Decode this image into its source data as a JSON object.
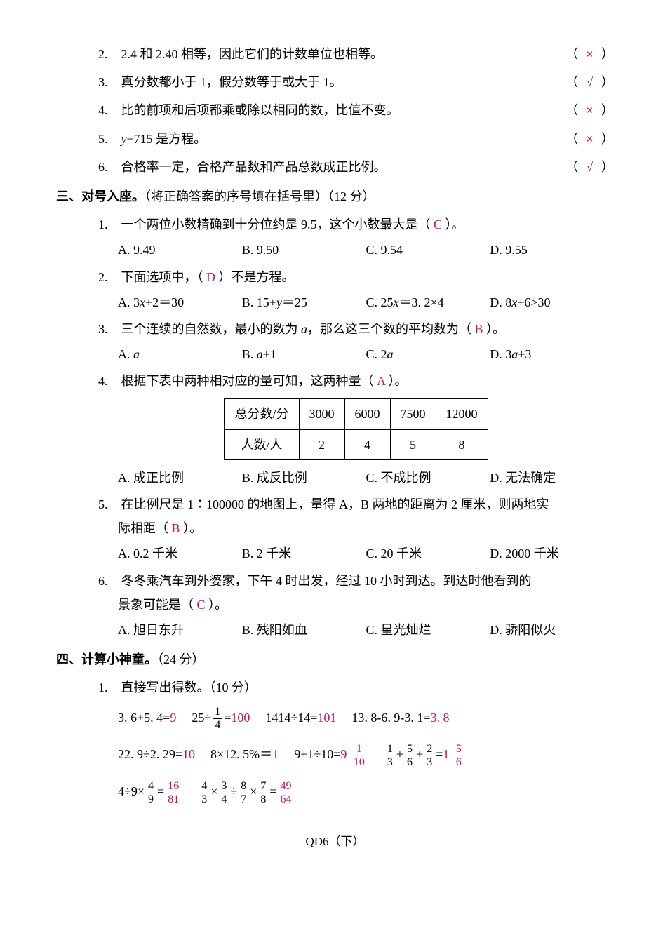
{
  "section2_items": [
    {
      "idx": "2.",
      "text": "2.4 和 2.40 相等，因此它们的计数单位也相等。",
      "mark": "×"
    },
    {
      "idx": "3.",
      "text": "真分数都小于 1，假分数等于或大于 1。",
      "mark": "√"
    },
    {
      "idx": "4.",
      "text": "比的前项和后项都乘或除以相同的数，比值不变。",
      "mark": "×"
    },
    {
      "idx": "5.",
      "text_html": "<span class=\"ital\">y</span>+715 是方程。",
      "mark": "×"
    },
    {
      "idx": "6.",
      "text": "合格率一定，合格产品数和产品总数成正比例。",
      "mark": "√"
    }
  ],
  "section3": {
    "title": "三、对号入座。",
    "note": "（将正确答案的序号填在括号里）（12 分）",
    "items": [
      {
        "idx": "1.",
        "stem_pre": "一个两位小数精确到十分位约是 9.5，这个小数最大是（",
        "ans": " C ",
        "stem_post": "）。",
        "opts": [
          "A. 9.49",
          "B. 9.50",
          "C. 9.54",
          "D. 9.55"
        ]
      },
      {
        "idx": "2.",
        "stem_pre": "下面选项中，（",
        "ans": " D ",
        "stem_post": "）不是方程。",
        "opts_html": [
          "A. 3<span class=\"ital\">x</span>+2＝30",
          "B. 15+<span class=\"ital\">y</span>＝25",
          "C. 25<span class=\"ital\">x</span>＝3. 2×4",
          "D. 8<span class=\"ital\">x</span>+6&gt;30"
        ]
      },
      {
        "idx": "3.",
        "stem_pre_html": "三个连续的自然数，最小的数为 <span class=\"ital\">a</span>，那么这三个数的平均数为（",
        "ans": " B ",
        "stem_post": "）。",
        "opts_html": [
          "A. <span class=\"ital\">a</span>",
          "B. <span class=\"ital\">a</span>+1",
          "C. 2<span class=\"ital\">a</span>",
          "D. 3<span class=\"ital\">a</span>+3"
        ]
      },
      {
        "idx": "4.",
        "stem_pre": "根据下表中两种相对应的量可知，这两种量（",
        "ans": " A ",
        "stem_post": "）。",
        "table": {
          "r1": [
            "总分数/分",
            "3000",
            "6000",
            "7500",
            "12000"
          ],
          "r2": [
            "人数/人",
            "2",
            "4",
            "5",
            "8"
          ]
        },
        "opts": [
          "A. 成正比例",
          "B. 成反比例",
          "C. 不成比例",
          "D. 无法确定"
        ]
      },
      {
        "idx": "5.",
        "stem_line1": "在比例尺是 1∶100000 的地图上，量得 A，B 两地的距离为 2 厘米，则两地实",
        "stem_line2_pre": "际相距（",
        "ans": " B ",
        "stem_line2_post": "）。",
        "opts": [
          "A. 0.2 千米",
          "B. 2 千米",
          "C. 20 千米",
          "D. 2000 千米"
        ]
      },
      {
        "idx": "6.",
        "stem_line1": "冬冬乘汽车到外婆家，下午 4 时出发，经过 10 小时到达。到达时他看到的",
        "stem_line2_pre": "景象可能是（",
        "ans": " C ",
        "stem_line2_post": "）。",
        "opts": [
          "A. 旭日东升",
          "B. 残阳如血",
          "C. 星光灿烂",
          "D. 骄阳似火"
        ]
      }
    ]
  },
  "section4": {
    "title": "四、计算小神童。",
    "points": "（24 分）",
    "sub1": {
      "idx": "1.",
      "label": "直接写出得数。（10 分）"
    },
    "row1": [
      {
        "expr": "3. 6+5. 4=",
        "ans": "9"
      },
      {
        "expr_html": "25÷<span class=\"frac\"><span class=\"num\">1</span><span class=\"den\">4</span></span>=",
        "ans": "100"
      },
      {
        "expr": "1414÷14=",
        "ans": "101"
      },
      {
        "expr": "13. 8-6. 9-3. 1=",
        "ans": "3. 8"
      }
    ],
    "row2": [
      {
        "expr": "22. 9÷2. 29=",
        "ans": "10"
      },
      {
        "expr": "8×12. 5%＝",
        "ans": "1"
      },
      {
        "expr_html": "9+1÷10=",
        "ans_html": "9 <span class=\"frac ans\"><span class=\"num\">1</span><span class=\"den\">10</span></span>"
      },
      {
        "expr_html": "<span class=\"frac\"><span class=\"num\">1</span><span class=\"den\">3</span></span>+<span class=\"frac\"><span class=\"num\">5</span><span class=\"den\">6</span></span>+<span class=\"frac\"><span class=\"num\">2</span><span class=\"den\">3</span></span>=",
        "ans_html": "1 <span class=\"frac ans\"><span class=\"num\">5</span><span class=\"den\">6</span></span>"
      }
    ],
    "row3": [
      {
        "expr_html": "4÷9×<span class=\"frac\"><span class=\"num\">4</span><span class=\"den\">9</span></span>=",
        "ans_html": "<span class=\"frac ans\"><span class=\"num\">16</span><span class=\"den\">81</span></span>"
      },
      {
        "expr_html": "<span class=\"frac\"><span class=\"num\">4</span><span class=\"den\">3</span></span>×<span class=\"frac\"><span class=\"num\">3</span><span class=\"den\">4</span></span>÷<span class=\"frac\"><span class=\"num\">8</span><span class=\"den\">7</span></span>×<span class=\"frac\"><span class=\"num\">7</span><span class=\"den\">8</span></span>=",
        "ans_html": "<span class=\"frac ans\"><span class=\"num\">49</span><span class=\"den\">64</span></span>"
      }
    ]
  },
  "footer": "QD6（下）",
  "ans_color": "#c7125c"
}
